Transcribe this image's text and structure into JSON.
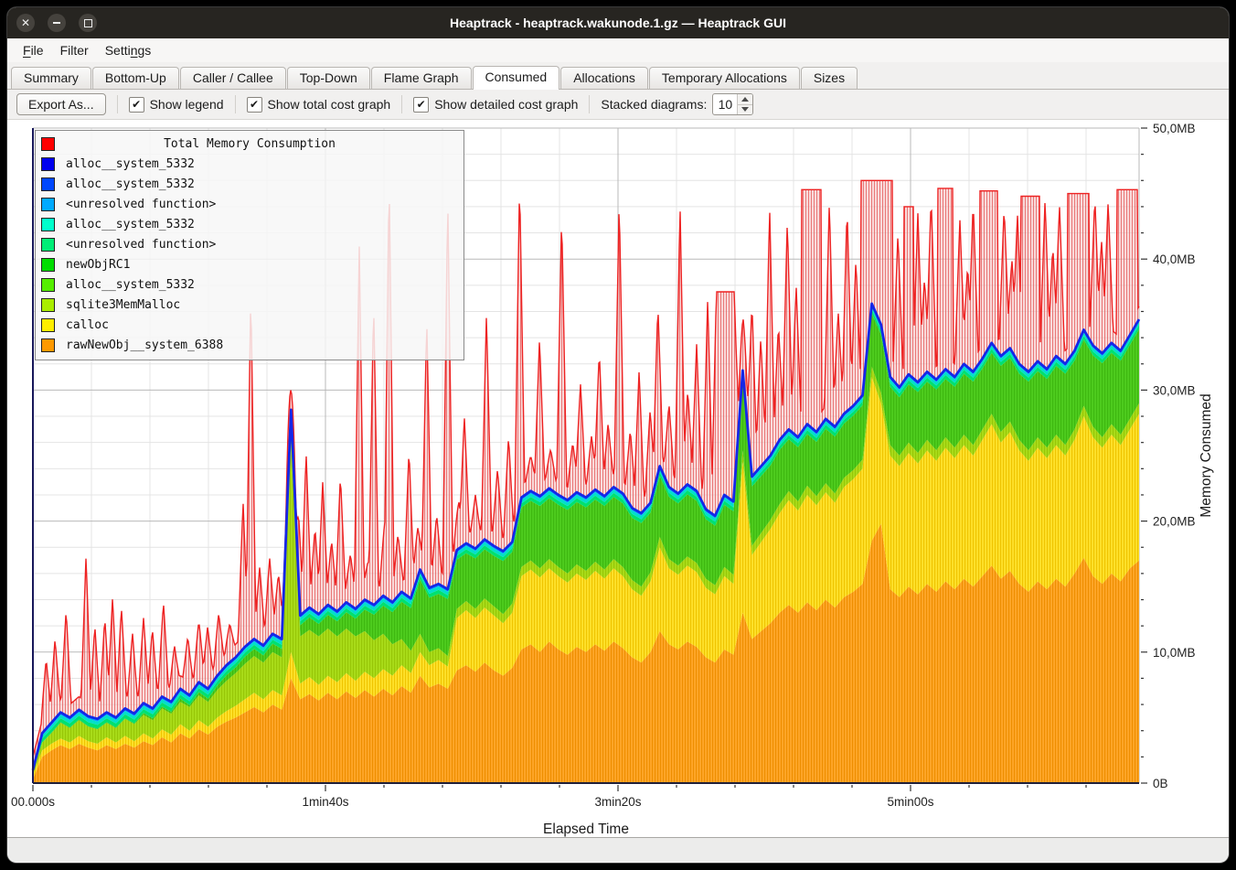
{
  "window": {
    "title": "Heaptrack - heaptrack.wakunode.1.gz — Heaptrack GUI",
    "controls": {
      "close": "close",
      "minimize": "minimize",
      "maximize": "maximize"
    }
  },
  "menubar": {
    "items": [
      {
        "pre": "",
        "u": "F",
        "post": "ile"
      },
      {
        "pre": "Filter",
        "u": "",
        "post": ""
      },
      {
        "pre": "Setti",
        "u": "n",
        "post": "gs"
      }
    ]
  },
  "tabs": {
    "items": [
      "Summary",
      "Bottom-Up",
      "Caller / Callee",
      "Top-Down",
      "Flame Graph",
      "Consumed",
      "Allocations",
      "Temporary Allocations",
      "Sizes"
    ],
    "active": "Consumed"
  },
  "toolbar": {
    "export_label": "Export As...",
    "checkboxes": [
      {
        "label": "Show legend",
        "checked": true
      },
      {
        "label": "Show total cost graph",
        "checked": true
      },
      {
        "label": "Show detailed cost graph",
        "checked": true
      }
    ],
    "stacked_label": "Stacked diagrams:",
    "stacked_value": "10",
    "check_glyph": "✔"
  },
  "chart_data": {
    "type": "area",
    "title": "Total Memory Consumption",
    "xlabel": "Elapsed Time",
    "ylabel": "Memory Consumed",
    "x_axis": {
      "ticks": [
        {
          "label": "00.000s",
          "t": 0.0
        },
        {
          "label": "1min40s",
          "t": 0.2645
        },
        {
          "label": "3min20s",
          "t": 0.5289
        },
        {
          "label": "5min00s",
          "t": 0.7934
        }
      ],
      "minor_per_major": 5
    },
    "y_axis": {
      "max_mb": 50,
      "minor_step_mb": 2,
      "major_step_mb": 10,
      "tick_labels": [
        "0B",
        "10,0MB",
        "20,0MB",
        "30,0MB",
        "40,0MB",
        "50,0MB"
      ]
    },
    "legend": {
      "title": "Total Memory Consumption",
      "title_color": "#ff0000",
      "items": [
        {
          "label": "alloc__system_5332",
          "color": "#0000ee"
        },
        {
          "label": "alloc__system_5332",
          "color": "#0047ff"
        },
        {
          "label": "<unresolved function>",
          "color": "#00aaff"
        },
        {
          "label": "alloc__system_5332",
          "color": "#00ffcc"
        },
        {
          "label": "<unresolved function>",
          "color": "#00ee77"
        },
        {
          "label": "newObjRC1",
          "color": "#00dd00"
        },
        {
          "label": "alloc__system_5332",
          "color": "#55ee00"
        },
        {
          "label": "sqlite3MemMalloc",
          "color": "#aaee00"
        },
        {
          "label": "calloc",
          "color": "#ffee00"
        },
        {
          "label": "rawNewObj__system_6388",
          "color": "#ff9900"
        }
      ]
    },
    "colors": {
      "orange_fill": "#ffa629",
      "orange_hatch": "#ee8e00",
      "yellow_fill": "#ffe12b",
      "yellow_hatch": "#efc400",
      "ygreen_fill": "#a9dc19",
      "ygreen_hatch": "#97c607",
      "green_fill": "#4ecc1e",
      "green_hatch": "#3eb810",
      "spring_fill": "#00e070",
      "turquoise_fill": "#00e0c8",
      "lightblue_fill": "#00a6ff",
      "blue_line": "#1427e8",
      "red_line": "#ee2222",
      "red_fill": "#f3bcbc",
      "red_hatch": "#e25555",
      "grid_minor": "#e4e4e4",
      "grid_major": "#b9b9b9",
      "axis_left": "#17175a",
      "axis_bottom": "#20203a",
      "tick": "#333333"
    },
    "series": {
      "stack_top_mb": [
        1.0,
        3.8,
        4.6,
        5.4,
        5.0,
        5.6,
        5.1,
        4.9,
        5.4,
        5.0,
        5.7,
        5.3,
        6.1,
        5.7,
        6.6,
        6.2,
        7.2,
        6.7,
        7.7,
        7.2,
        8.2,
        9.0,
        9.6,
        10.4,
        11.0,
        10.5,
        11.4,
        11.0,
        28.5,
        12.8,
        13.4,
        12.9,
        13.6,
        13.1,
        13.8,
        13.3,
        14.0,
        13.6,
        14.3,
        13.8,
        14.6,
        14.1,
        16.3,
        14.9,
        15.2,
        14.8,
        17.8,
        18.3,
        17.9,
        18.6,
        18.1,
        17.7,
        18.4,
        21.8,
        22.3,
        21.9,
        22.5,
        22.0,
        21.6,
        22.2,
        21.8,
        22.4,
        21.9,
        22.6,
        22.1,
        21.0,
        20.6,
        21.4,
        24.2,
        22.6,
        22.1,
        22.8,
        22.3,
        20.9,
        20.4,
        22.0,
        21.5,
        31.5,
        23.4,
        24.2,
        25.0,
        26.2,
        27.0,
        26.4,
        27.4,
        26.8,
        27.8,
        27.2,
        28.2,
        28.8,
        29.6,
        36.6,
        35.0,
        31.0,
        30.2,
        31.2,
        30.6,
        31.4,
        30.8,
        31.6,
        31.0,
        32.0,
        31.4,
        32.4,
        33.6,
        32.6,
        33.2,
        32.0,
        31.4,
        32.2,
        31.6,
        32.6,
        32.0,
        33.0,
        34.6,
        33.4,
        32.8,
        33.6,
        33.0,
        34.2,
        35.4
      ],
      "orange_top_mb": [
        0.3,
        2.0,
        2.5,
        2.9,
        2.6,
        3.0,
        2.7,
        2.5,
        2.9,
        2.6,
        3.0,
        2.7,
        3.2,
        2.9,
        3.5,
        3.1,
        3.8,
        3.4,
        4.1,
        3.7,
        4.3,
        4.7,
        5.0,
        5.4,
        5.8,
        5.4,
        6.0,
        5.6,
        8.0,
        6.4,
        6.8,
        6.3,
        6.9,
        6.4,
        7.0,
        6.5,
        7.1,
        6.6,
        7.2,
        6.7,
        7.4,
        6.9,
        8.2,
        7.3,
        7.6,
        7.2,
        8.6,
        9.0,
        8.5,
        9.2,
        8.6,
        8.2,
        8.8,
        10.2,
        10.6,
        10.0,
        10.8,
        10.2,
        9.8,
        10.4,
        10.0,
        10.6,
        10.1,
        10.8,
        10.3,
        9.6,
        9.2,
        10.0,
        11.6,
        10.6,
        10.2,
        10.8,
        10.4,
        9.6,
        9.2,
        10.2,
        9.8,
        13.0,
        11.0,
        11.6,
        12.2,
        13.0,
        13.6,
        13.0,
        13.8,
        13.2,
        14.0,
        13.4,
        14.2,
        14.6,
        15.2,
        18.5,
        19.8,
        14.8,
        14.2,
        15.0,
        14.4,
        15.2,
        14.6,
        15.4,
        14.8,
        15.6,
        15.0,
        15.8,
        16.6,
        15.6,
        16.2,
        15.2,
        14.6,
        15.4,
        14.8,
        15.6,
        15.0,
        16.0,
        17.2,
        15.8,
        15.2,
        16.0,
        15.4,
        16.4,
        17.0
      ],
      "yellow_top_mb": [
        0.6,
        2.5,
        3.0,
        3.4,
        3.1,
        3.6,
        3.2,
        3.0,
        3.5,
        3.1,
        3.6,
        3.2,
        3.8,
        3.4,
        4.1,
        3.7,
        4.5,
        4.0,
        4.8,
        4.3,
        5.0,
        5.5,
        5.9,
        6.4,
        6.9,
        6.4,
        7.1,
        6.7,
        10.0,
        7.6,
        8.1,
        7.5,
        8.2,
        7.7,
        8.4,
        7.8,
        8.5,
        8.0,
        8.7,
        8.2,
        9.0,
        8.4,
        10.0,
        9.0,
        9.4,
        8.9,
        12.6,
        13.2,
        12.6,
        13.4,
        12.8,
        12.2,
        13.0,
        15.8,
        16.3,
        15.7,
        16.4,
        15.8,
        15.3,
        16.0,
        15.5,
        16.2,
        15.6,
        16.4,
        15.8,
        14.8,
        14.3,
        15.4,
        18.0,
        16.4,
        15.9,
        16.6,
        16.1,
        14.9,
        14.4,
        15.8,
        15.2,
        24.5,
        17.4,
        18.4,
        19.4,
        20.6,
        21.6,
        20.8,
        22.0,
        21.2,
        22.2,
        21.4,
        22.6,
        23.2,
        24.0,
        31.0,
        29.0,
        25.0,
        24.2,
        25.2,
        24.4,
        25.4,
        24.6,
        25.6,
        24.8,
        25.8,
        25.0,
        26.2,
        27.4,
        26.0,
        26.8,
        25.4,
        24.6,
        25.6,
        24.8,
        25.8,
        25.0,
        26.2,
        28.0,
        26.4,
        25.6,
        26.6,
        25.8,
        27.0,
        28.2
      ],
      "ygreen_top_mb": [
        0.85,
        3.1,
        3.8,
        4.6,
        4.2,
        4.8,
        4.3,
        4.1,
        4.6,
        4.2,
        4.9,
        4.5,
        5.2,
        4.8,
        5.7,
        5.3,
        6.2,
        5.8,
        6.7,
        6.2,
        7.1,
        7.8,
        8.4,
        9.1,
        9.7,
        9.2,
        10.0,
        9.6,
        26.0,
        11.2,
        11.7,
        11.2,
        11.8,
        11.2,
        11.8,
        11.2,
        11.6,
        10.9,
        11.4,
        10.6,
        11.0,
        10.1,
        11.4,
        10.0,
        10.3,
        9.7,
        13.3,
        13.9,
        13.3,
        14.1,
        13.5,
        12.9,
        13.7,
        16.5,
        17.0,
        16.4,
        17.1,
        16.5,
        16.0,
        16.7,
        16.2,
        16.9,
        16.3,
        17.1,
        16.5,
        15.5,
        15.0,
        16.1,
        18.8,
        17.1,
        16.6,
        17.3,
        16.8,
        15.6,
        15.1,
        16.5,
        15.9,
        25.4,
        18.1,
        19.1,
        20.1,
        21.3,
        22.3,
        21.5,
        22.7,
        21.9,
        22.9,
        22.1,
        23.3,
        23.9,
        24.7,
        31.8,
        29.8,
        25.8,
        25.0,
        26.0,
        25.2,
        26.2,
        25.4,
        26.4,
        25.6,
        26.6,
        25.8,
        27.0,
        28.2,
        26.8,
        27.6,
        26.2,
        25.4,
        26.4,
        25.6,
        26.6,
        25.8,
        27.0,
        28.8,
        27.2,
        26.4,
        27.4,
        26.6,
        27.8,
        29.0
      ],
      "strip_offsets_mb": {
        "green_gap": 0.75,
        "spring": 0.3,
        "turquoise": 0.25
      }
    },
    "total": {
      "baseline_offset_mb": 1.0,
      "spike_halfwidth_t": 0.0045,
      "spikes": [
        [
          0.012,
          9.5
        ],
        [
          0.02,
          11
        ],
        [
          0.03,
          13.2
        ],
        [
          0.048,
          17.3
        ],
        [
          0.056,
          12
        ],
        [
          0.065,
          12.6
        ],
        [
          0.072,
          14.2
        ],
        [
          0.08,
          13.4
        ],
        [
          0.09,
          11.5
        ],
        [
          0.1,
          12.6
        ],
        [
          0.108,
          11.8
        ],
        [
          0.118,
          13.8
        ],
        [
          0.128,
          10.5
        ],
        [
          0.14,
          11.2
        ],
        [
          0.15,
          12.4
        ],
        [
          0.158,
          12
        ],
        [
          0.168,
          13
        ],
        [
          0.178,
          12.2
        ],
        [
          0.19,
          21.5
        ],
        [
          0.197,
          37.6
        ],
        [
          0.205,
          16.5
        ],
        [
          0.214,
          17.2
        ],
        [
          0.222,
          16
        ],
        [
          0.233,
          30
        ],
        [
          0.24,
          20.5
        ],
        [
          0.247,
          25.2
        ],
        [
          0.255,
          19.5
        ],
        [
          0.262,
          23
        ],
        [
          0.27,
          18.5
        ],
        [
          0.278,
          23.5
        ],
        [
          0.287,
          17.5
        ],
        [
          0.295,
          41.2
        ],
        [
          0.303,
          17
        ],
        [
          0.308,
          36.8
        ],
        [
          0.318,
          20
        ],
        [
          0.322,
          46.4
        ],
        [
          0.33,
          19
        ],
        [
          0.34,
          25.5
        ],
        [
          0.348,
          19.5
        ],
        [
          0.356,
          35.5
        ],
        [
          0.365,
          20.5
        ],
        [
          0.375,
          44.8
        ],
        [
          0.385,
          21.5
        ],
        [
          0.39,
          28
        ],
        [
          0.4,
          22
        ],
        [
          0.41,
          35.8
        ],
        [
          0.42,
          24
        ],
        [
          0.43,
          26.5
        ],
        [
          0.44,
          46
        ],
        [
          0.45,
          25
        ],
        [
          0.458,
          34
        ],
        [
          0.468,
          25.5
        ],
        [
          0.478,
          43.5
        ],
        [
          0.488,
          26
        ],
        [
          0.495,
          30.5
        ],
        [
          0.505,
          26.5
        ],
        [
          0.512,
          33
        ],
        [
          0.52,
          27.5
        ],
        [
          0.53,
          44.6
        ],
        [
          0.54,
          27
        ],
        [
          0.548,
          31.5
        ],
        [
          0.558,
          28.5
        ],
        [
          0.565,
          36.5
        ],
        [
          0.575,
          29
        ],
        [
          0.585,
          44.2
        ],
        [
          0.592,
          30
        ],
        [
          0.6,
          33.5
        ],
        [
          0.61,
          37
        ],
        [
          0.618,
          38
        ],
        [
          0.626,
          36.5
        ],
        [
          0.634,
          37.8
        ],
        [
          0.642,
          35.5
        ],
        [
          0.65,
          36.8
        ],
        [
          0.658,
          34
        ],
        [
          0.666,
          44
        ],
        [
          0.674,
          35
        ],
        [
          0.682,
          43
        ],
        [
          0.69,
          38
        ],
        [
          0.72,
          44.5
        ],
        [
          0.728,
          36
        ],
        [
          0.736,
          44
        ],
        [
          0.744,
          40
        ],
        [
          0.77,
          44.5
        ],
        [
          0.782,
          42
        ],
        [
          0.8,
          43.5
        ],
        [
          0.806,
          38.5
        ],
        [
          0.812,
          44.8
        ],
        [
          0.838,
          43
        ],
        [
          0.845,
          39.5
        ],
        [
          0.85,
          44.5
        ],
        [
          0.878,
          44
        ],
        [
          0.885,
          40
        ],
        [
          0.89,
          43.5
        ],
        [
          0.915,
          44.6
        ],
        [
          0.922,
          41
        ],
        [
          0.928,
          44.2
        ],
        [
          0.945,
          43
        ],
        [
          0.96,
          44.8
        ],
        [
          0.966,
          41.5
        ],
        [
          0.972,
          44.4
        ],
        [
          0.99,
          44
        ]
      ],
      "flats": [
        [
          0.618,
          0.634,
          37.5
        ],
        [
          0.695,
          0.713,
          45.3
        ],
        [
          0.748,
          0.777,
          46.0
        ],
        [
          0.787,
          0.796,
          44.0
        ],
        [
          0.818,
          0.832,
          45.4
        ],
        [
          0.856,
          0.872,
          45.2
        ],
        [
          0.893,
          0.91,
          44.8
        ],
        [
          0.935,
          0.955,
          45.0
        ],
        [
          0.98,
          0.999,
          45.3
        ]
      ]
    }
  }
}
